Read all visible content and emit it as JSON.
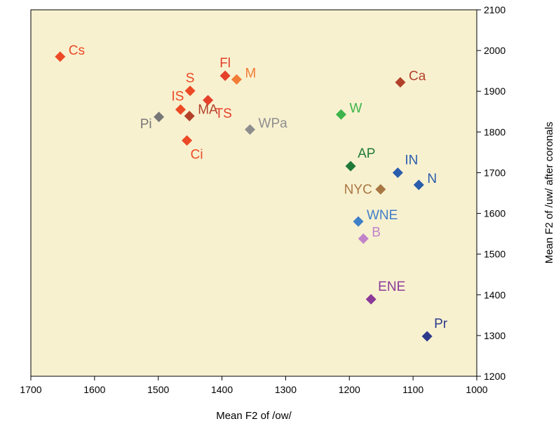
{
  "chart_data": {
    "type": "scatter",
    "title": "",
    "xlabel": "Mean F2 of /ow/",
    "ylabel": "Mean F2 of /uw/ after coronals",
    "xlim": [
      1700,
      1000
    ],
    "ylim": [
      1200,
      2100
    ],
    "x_reversed": true,
    "y_axis_side": "right",
    "grid": false,
    "plot_background": "#f8f1d0",
    "marker": "diamond",
    "x_ticks": [
      "1700",
      "1600",
      "1500",
      "1400",
      "1300",
      "1200",
      "1100",
      "1000"
    ],
    "y_ticks": [
      "1200",
      "1300",
      "1400",
      "1500",
      "1600",
      "1700",
      "1800",
      "1900",
      "2000",
      "2100"
    ],
    "points": [
      {
        "label": "Cs",
        "x": 1654,
        "y": 1985,
        "color": "#ec4a26",
        "label_side": "right"
      },
      {
        "label": "Fl",
        "x": 1395,
        "y": 1938,
        "color": "#e4402a",
        "label_side": "above"
      },
      {
        "label": "M",
        "x": 1377,
        "y": 1929,
        "color": "#f27c35",
        "label_side": "right"
      },
      {
        "label": "S",
        "x": 1450,
        "y": 1901,
        "color": "#ec4a26",
        "label_side": "above"
      },
      {
        "label": "TS",
        "x": 1422,
        "y": 1878,
        "color": "#e4402a",
        "label_side": "below-right"
      },
      {
        "label": "IS",
        "x": 1465,
        "y": 1855,
        "color": "#ec4a26",
        "label_side": "above-left"
      },
      {
        "label": "MA",
        "x": 1451,
        "y": 1839,
        "color": "#b2412a",
        "label_side": "right"
      },
      {
        "label": "Pi",
        "x": 1499,
        "y": 1837,
        "color": "#777777",
        "label_side": "below-left"
      },
      {
        "label": "WPa",
        "x": 1356,
        "y": 1806,
        "color": "#8e8e8e",
        "label_side": "right"
      },
      {
        "label": "Ci",
        "x": 1455,
        "y": 1779,
        "color": "#ec4a26",
        "label_side": "below"
      },
      {
        "label": "Ca",
        "x": 1120,
        "y": 1922,
        "color": "#b2412a",
        "label_side": "right"
      },
      {
        "label": "W",
        "x": 1213,
        "y": 1843,
        "color": "#3db54a",
        "label_side": "right"
      },
      {
        "label": "AP",
        "x": 1198,
        "y": 1716,
        "color": "#1f7a3a",
        "label_side": "above-right"
      },
      {
        "label": "IN",
        "x": 1124,
        "y": 1700,
        "color": "#2a5dab",
        "label_side": "above-right"
      },
      {
        "label": "N",
        "x": 1091,
        "y": 1670,
        "color": "#2a5dab",
        "label_side": "right"
      },
      {
        "label": "NYC",
        "x": 1151,
        "y": 1659,
        "color": "#a87743",
        "label_side": "left"
      },
      {
        "label": "WNE",
        "x": 1186,
        "y": 1580,
        "color": "#3f7fc8",
        "label_side": "right"
      },
      {
        "label": "B",
        "x": 1178,
        "y": 1538,
        "color": "#c184c9",
        "label_side": "right"
      },
      {
        "label": "ENE",
        "x": 1166,
        "y": 1389,
        "color": "#8b3a9a",
        "label_side": "above-right"
      },
      {
        "label": "Pr",
        "x": 1078,
        "y": 1298,
        "color": "#2d3a8c",
        "label_side": "above-right"
      }
    ]
  }
}
